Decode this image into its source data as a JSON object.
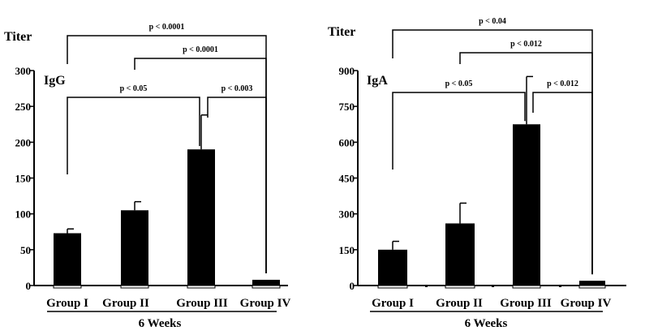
{
  "chart_data": [
    {
      "type": "bar",
      "ylabel": "Titer",
      "panel_label": "IgG",
      "categories": [
        "Group I",
        "Group II",
        "Group III",
        "Group IV"
      ],
      "values": [
        73,
        105,
        190,
        8
      ],
      "errors": [
        6,
        12,
        48,
        0
      ],
      "ylim": [
        0,
        300
      ],
      "yticks": [
        "0",
        "50",
        "100",
        "150",
        "200",
        "250",
        "300"
      ],
      "xlabel": "6 Weeks",
      "bar_color": "#000000",
      "significance": [
        {
          "from": 0,
          "to": 3,
          "label": "p < 0.0001"
        },
        {
          "from": 1,
          "to": 3,
          "label": "p < 0.0001"
        },
        {
          "from": 0,
          "to": 2,
          "label": "p < 0.05"
        },
        {
          "from": 2,
          "to": 3,
          "label": "p < 0.003"
        }
      ]
    },
    {
      "type": "bar",
      "ylabel": "Titer",
      "panel_label": "IgA",
      "categories": [
        "Group I",
        "Group II",
        "Group III",
        "Group IV"
      ],
      "values": [
        150,
        260,
        675,
        20
      ],
      "errors": [
        35,
        85,
        200,
        0
      ],
      "ylim": [
        0,
        900
      ],
      "yticks": [
        "0",
        "150",
        "300",
        "450",
        "600",
        "750",
        "900"
      ],
      "xlabel": "6 Weeks",
      "bar_color": "#000000",
      "significance": [
        {
          "from": 0,
          "to": 3,
          "label": "p < 0.04"
        },
        {
          "from": 1,
          "to": 3,
          "label": "p < 0.012"
        },
        {
          "from": 0,
          "to": 2,
          "label": "p < 0.05"
        },
        {
          "from": 2,
          "to": 3,
          "label": "p < 0.012"
        }
      ]
    }
  ]
}
